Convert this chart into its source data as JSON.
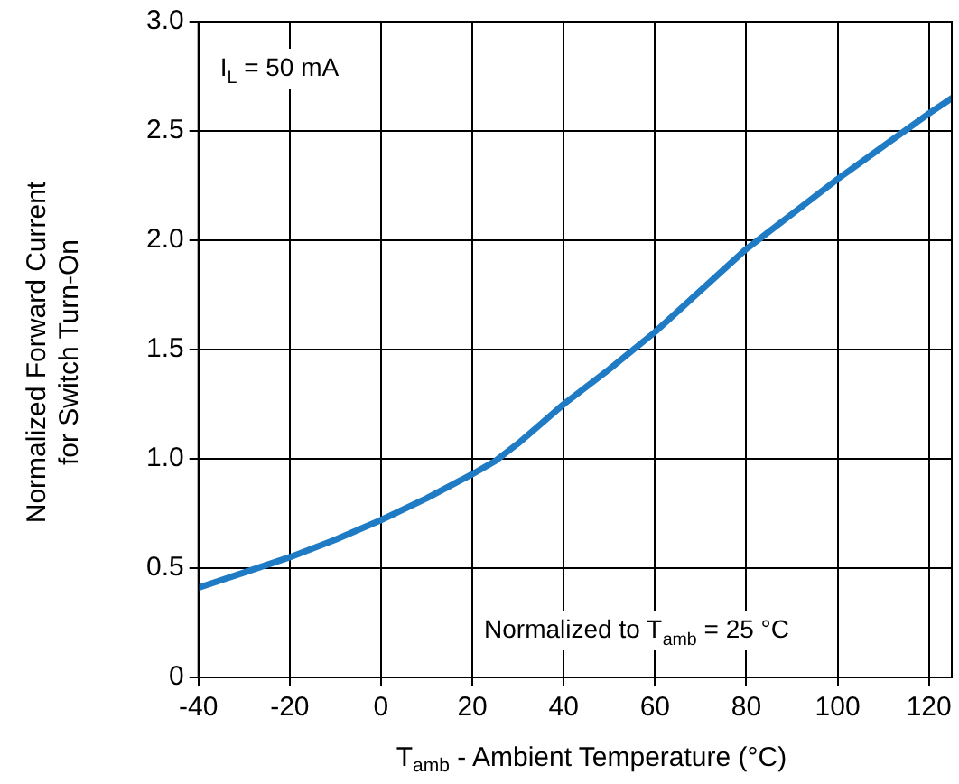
{
  "chart_data": {
    "type": "line",
    "xlabel": "T$_{amb}$ - Ambient Temperature (°C)",
    "ylabel": "Normalized Forward Current\nfor Switch Turn-On",
    "x": [
      -40,
      -30,
      -20,
      -10,
      0,
      10,
      20,
      25,
      30,
      35,
      40,
      50,
      60,
      70,
      80,
      90,
      100,
      110,
      120,
      125
    ],
    "series": [
      {
        "color": "#1f7bc4",
        "values": [
          0.41,
          0.48,
          0.55,
          0.63,
          0.72,
          0.82,
          0.93,
          0.99,
          1.07,
          1.16,
          1.25,
          1.41,
          1.58,
          1.77,
          1.96,
          2.12,
          2.28,
          2.43,
          2.58,
          2.65
        ]
      }
    ],
    "xlim": [
      -40,
      125
    ],
    "xticks": [
      -40,
      -20,
      0,
      20,
      40,
      60,
      80,
      100,
      120
    ],
    "ylim": [
      0,
      3
    ],
    "yticks": [
      0,
      {
        "value": 0.5,
        "label": "0.5"
      },
      {
        "value": 1,
        "label": "1.0"
      },
      {
        "value": 1.5,
        "label": "1.5"
      },
      {
        "value": 2,
        "label": "2.0"
      },
      {
        "value": 2.5,
        "label": "2.5"
      },
      {
        "value": 3,
        "label": "3.0"
      }
    ],
    "grid": true,
    "legend": false,
    "marker": "none",
    "line_style": "solid",
    "annotations": [
      "I$_{L}$ = 50 mA",
      "Normalized to T$_{amb}$ = 25 °C"
    ]
  }
}
